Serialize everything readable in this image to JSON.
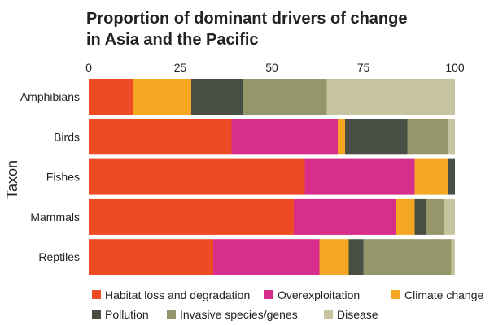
{
  "chart_data": {
    "type": "bar",
    "orientation": "horizontal",
    "stacked": true,
    "title_lines": [
      "Proportion of dominant drivers of change",
      "in Asia and the Pacific"
    ],
    "xlabel": "",
    "ylabel": "Taxon",
    "xlim": [
      0,
      100
    ],
    "xticks": [
      0,
      25,
      50,
      75,
      100
    ],
    "x_axis_position": "top",
    "grid": false,
    "legend_position": "bottom",
    "categories": [
      "Amphibians",
      "Birds",
      "Fishes",
      "Mammals",
      "Reptiles"
    ],
    "series": [
      {
        "name": "Habitat loss and degradation",
        "color": "#EE4B24",
        "values": [
          12,
          39,
          59,
          56,
          34
        ]
      },
      {
        "name": "Overexploitation",
        "color": "#D62E8A",
        "values": [
          0,
          29,
          30,
          28,
          29
        ]
      },
      {
        "name": "Climate change",
        "color": "#F5A623",
        "values": [
          16,
          2,
          9,
          5,
          8
        ]
      },
      {
        "name": "Pollution",
        "color": "#4A4F45",
        "values": [
          14,
          17,
          2,
          3,
          4
        ]
      },
      {
        "name": "Invasive species/genes",
        "color": "#95966A",
        "values": [
          23,
          11,
          0,
          5,
          24
        ]
      },
      {
        "name": "Disease",
        "color": "#C7C4A0",
        "values": [
          35,
          2,
          0,
          3,
          1
        ]
      }
    ]
  }
}
